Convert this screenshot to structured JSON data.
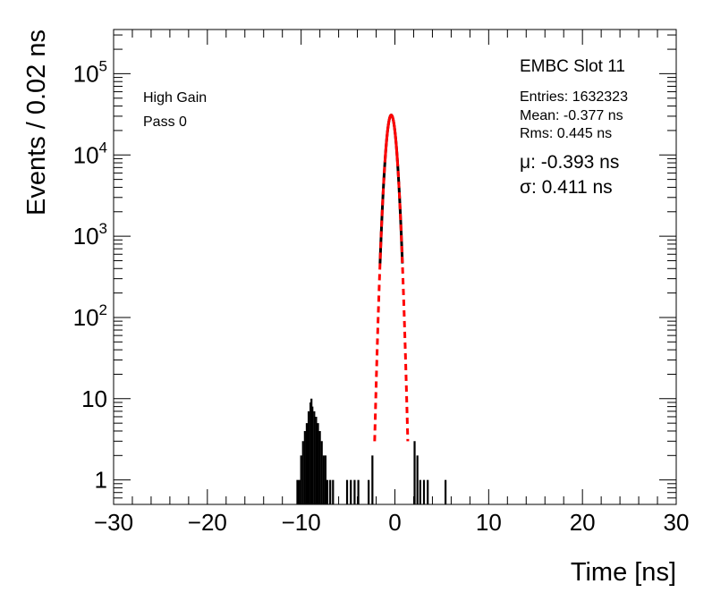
{
  "chart_data": {
    "type": "histogram",
    "title": "",
    "xlabel": "Time [ns]",
    "ylabel": "Events / 0.02 ns",
    "xlim": [
      -30,
      30
    ],
    "ylim": [
      0.5,
      350000
    ],
    "y_log_scale": true,
    "grid": false,
    "x_ticks": [
      -30,
      -20,
      -10,
      0,
      10,
      20,
      30
    ],
    "x_tick_labels": [
      "−30",
      "−20",
      "−10",
      "0",
      "10",
      "20",
      "30"
    ],
    "y_ticks": [
      1,
      10,
      100,
      1000,
      10000,
      100000
    ],
    "y_tick_labels": [
      {
        "base": "1",
        "exp": ""
      },
      {
        "base": "10",
        "exp": ""
      },
      {
        "base": "10",
        "exp": "2"
      },
      {
        "base": "10",
        "exp": "3"
      },
      {
        "base": "10",
        "exp": "4"
      },
      {
        "base": "10",
        "exp": "5"
      }
    ],
    "annotations": {
      "gain": "High Gain",
      "pass": "Pass 0",
      "slot": "EMBC Slot 11",
      "entries": "Entries: 1632323",
      "mean": "Mean: -0.377 ns",
      "rms": "Rms: 0.445 ns",
      "mu": "μ: -0.393 ns",
      "sigma": "σ: 0.411 ns"
    },
    "histogram": {
      "color": "#000000",
      "outliers": [
        {
          "x": -10.4,
          "y": 1
        },
        {
          "x": -10.2,
          "y": 1
        },
        {
          "x": -10.0,
          "y": 2
        },
        {
          "x": -9.8,
          "y": 3
        },
        {
          "x": -9.6,
          "y": 4
        },
        {
          "x": -9.4,
          "y": 5
        },
        {
          "x": -9.2,
          "y": 7
        },
        {
          "x": -9.0,
          "y": 9
        },
        {
          "x": -8.9,
          "y": 10
        },
        {
          "x": -8.8,
          "y": 8
        },
        {
          "x": -8.6,
          "y": 7
        },
        {
          "x": -8.4,
          "y": 6
        },
        {
          "x": -8.2,
          "y": 5
        },
        {
          "x": -8.0,
          "y": 4
        },
        {
          "x": -7.8,
          "y": 3
        },
        {
          "x": -7.6,
          "y": 2
        },
        {
          "x": -7.4,
          "y": 2
        },
        {
          "x": -7.2,
          "y": 1
        },
        {
          "x": -6.9,
          "y": 1
        },
        {
          "x": -6.6,
          "y": 1
        },
        {
          "x": -5.1,
          "y": 1
        },
        {
          "x": -4.7,
          "y": 1
        },
        {
          "x": -4.3,
          "y": 1
        },
        {
          "x": -3.9,
          "y": 1
        },
        {
          "x": -2.8,
          "y": 1
        },
        {
          "x": -2.4,
          "y": 2
        },
        {
          "x": 2.1,
          "y": 3
        },
        {
          "x": 2.4,
          "y": 2
        },
        {
          "x": 2.7,
          "y": 1
        },
        {
          "x": 3.1,
          "y": 1
        },
        {
          "x": 3.5,
          "y": 1
        },
        {
          "x": 5.4,
          "y": 1
        }
      ]
    },
    "fit": {
      "function": "gaussian",
      "mu": -0.393,
      "sigma": 0.411,
      "peak": 31000,
      "color": "#ff0000",
      "solid_range_sigma": 1.6
    }
  }
}
